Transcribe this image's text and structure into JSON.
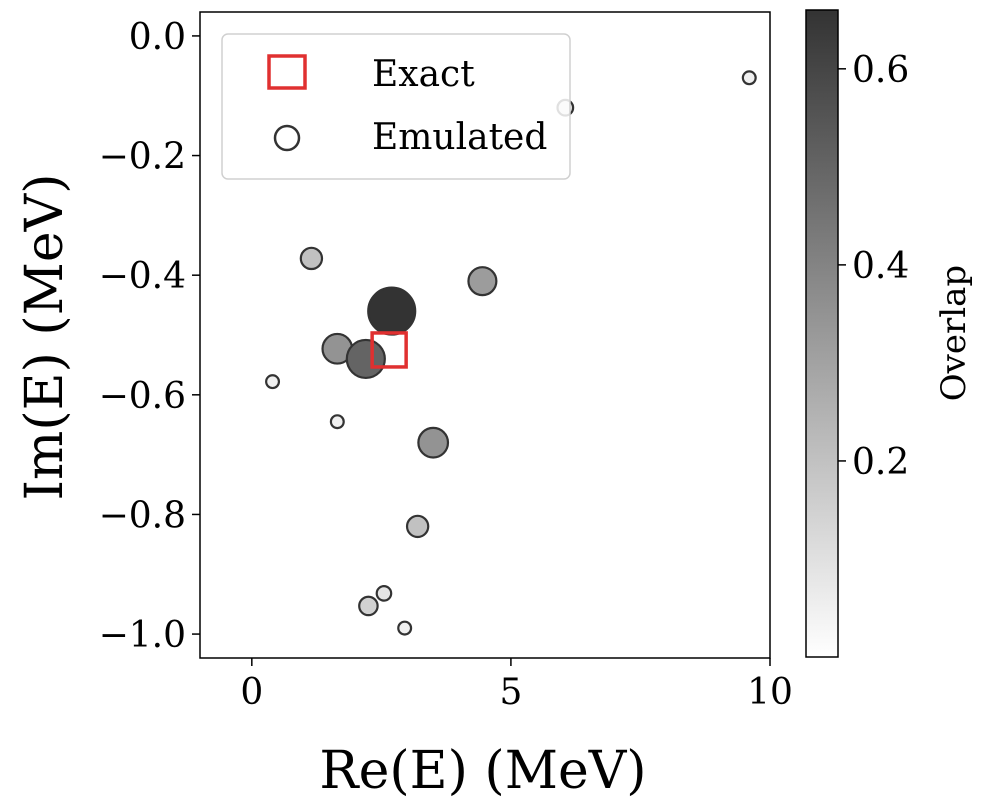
{
  "chart_data": {
    "type": "scatter",
    "xlabel": "Re(E) (MeV)",
    "ylabel": "Im(E) (MeV)",
    "xlim": [
      -1,
      10
    ],
    "ylim": [
      -1.04,
      0.04
    ],
    "x_ticks": [
      0,
      5,
      10
    ],
    "y_ticks": [
      0.0,
      -0.2,
      -0.4,
      -0.6,
      -0.8,
      -1.0
    ],
    "x_tick_labels": [
      "0",
      "5",
      "10"
    ],
    "y_tick_labels": [
      "0.0",
      "−0.2",
      "−0.4",
      "−0.6",
      "−0.8",
      "−1.0"
    ],
    "grid": false,
    "legend": {
      "placement": "top-left",
      "entries": [
        {
          "label": "Exact",
          "marker": "square",
          "color": "#e03030"
        },
        {
          "label": "Emulated",
          "marker": "circle",
          "color": "#333333"
        }
      ]
    },
    "colorbar": {
      "label": "Overlap",
      "range": [
        0.0,
        0.66
      ],
      "ticks": [
        0.2,
        0.4,
        0.6
      ],
      "tick_labels": [
        "0.2",
        "0.4",
        "0.6"
      ],
      "colormap": "Greys"
    },
    "series": [
      {
        "name": "Exact",
        "points": [
          {
            "x": 2.65,
            "y": -0.525
          }
        ]
      },
      {
        "name": "Emulated",
        "points": [
          {
            "x": 9.6,
            "y": -0.07,
            "overlap": 0.05
          },
          {
            "x": 6.05,
            "y": -0.12,
            "overlap": 0.1
          },
          {
            "x": 1.15,
            "y": -0.372,
            "overlap": 0.2
          },
          {
            "x": 4.45,
            "y": -0.41,
            "overlap": 0.32
          },
          {
            "x": 2.7,
            "y": -0.46,
            "overlap": 0.66
          },
          {
            "x": 1.65,
            "y": -0.523,
            "overlap": 0.35
          },
          {
            "x": 2.2,
            "y": -0.54,
            "overlap": 0.5
          },
          {
            "x": 0.4,
            "y": -0.578,
            "overlap": 0.05
          },
          {
            "x": 1.65,
            "y": -0.645,
            "overlap": 0.05
          },
          {
            "x": 3.5,
            "y": -0.68,
            "overlap": 0.35
          },
          {
            "x": 3.2,
            "y": -0.82,
            "overlap": 0.2
          },
          {
            "x": 2.55,
            "y": -0.932,
            "overlap": 0.08
          },
          {
            "x": 2.25,
            "y": -0.953,
            "overlap": 0.15
          },
          {
            "x": 2.95,
            "y": -0.99,
            "overlap": 0.05
          }
        ]
      }
    ]
  }
}
